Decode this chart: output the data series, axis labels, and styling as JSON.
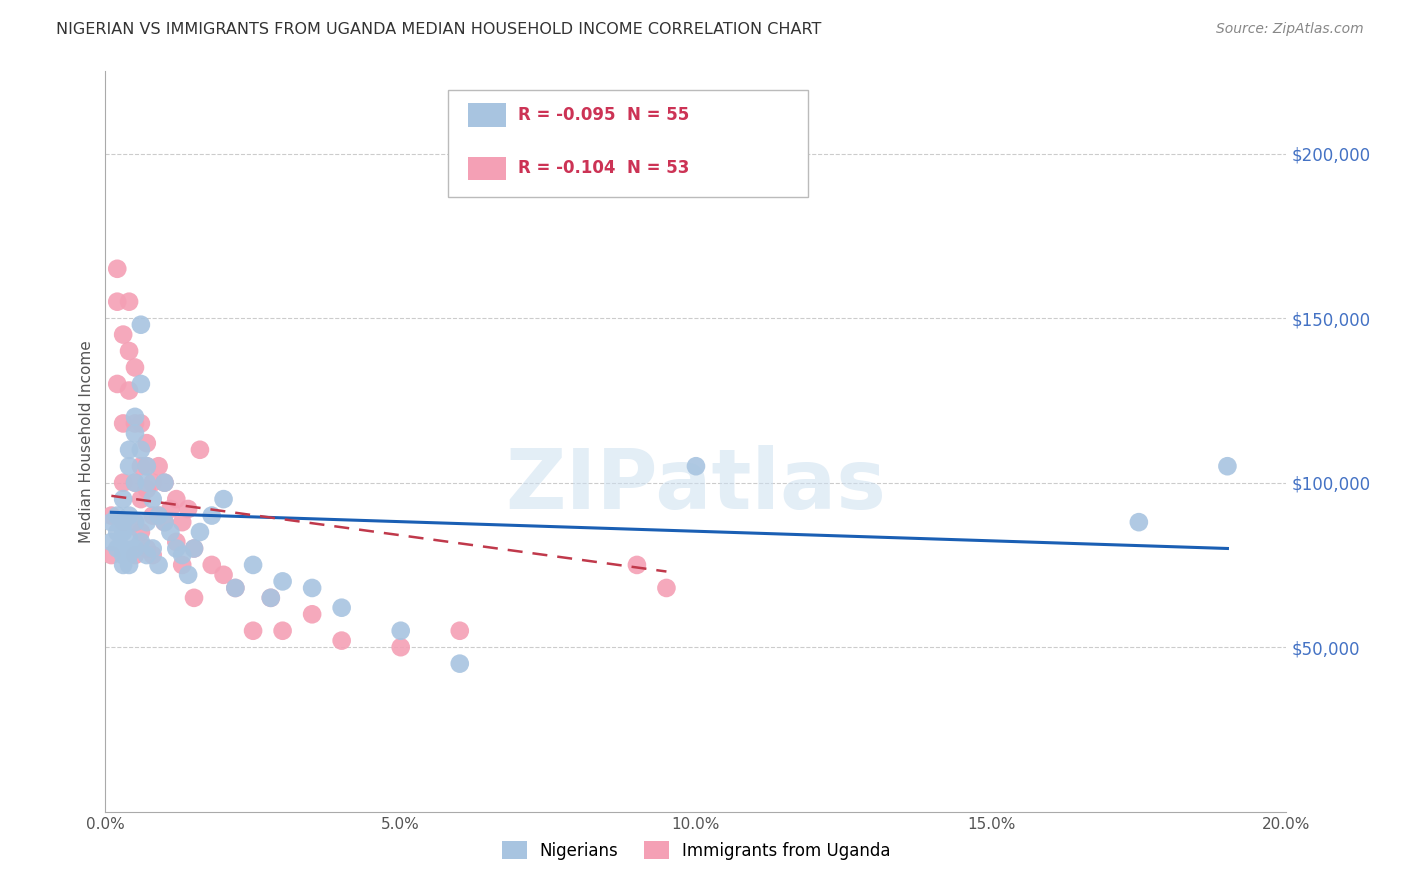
{
  "title": "NIGERIAN VS IMMIGRANTS FROM UGANDA MEDIAN HOUSEHOLD INCOME CORRELATION CHART",
  "source": "Source: ZipAtlas.com",
  "ylabel": "Median Household Income",
  "xlim": [
    0.0,
    0.2
  ],
  "ylim": [
    0,
    225000
  ],
  "yticks": [
    0,
    50000,
    100000,
    150000,
    200000
  ],
  "xticks": [
    0.0,
    0.05,
    0.1,
    0.15,
    0.2
  ],
  "xtick_labels": [
    "0.0%",
    "5.0%",
    "10.0%",
    "15.0%",
    "20.0%"
  ],
  "nigerian_color": "#a8c4e0",
  "uganda_color": "#f4a0b5",
  "nigerian_line_color": "#1a5fb4",
  "uganda_line_color": "#c0394b",
  "legend_R_nigerian": "R = -0.095",
  "legend_N_nigerian": "N = 55",
  "legend_R_uganda": "R = -0.104",
  "legend_N_uganda": "N = 53",
  "watermark": "ZIPatlas",
  "background_color": "#ffffff",
  "grid_color": "#cccccc",
  "nigerian_x": [
    0.001,
    0.001,
    0.002,
    0.002,
    0.002,
    0.003,
    0.003,
    0.003,
    0.003,
    0.003,
    0.003,
    0.004,
    0.004,
    0.004,
    0.004,
    0.004,
    0.004,
    0.005,
    0.005,
    0.005,
    0.005,
    0.005,
    0.006,
    0.006,
    0.006,
    0.006,
    0.007,
    0.007,
    0.007,
    0.007,
    0.008,
    0.008,
    0.009,
    0.009,
    0.01,
    0.01,
    0.011,
    0.012,
    0.013,
    0.014,
    0.015,
    0.016,
    0.018,
    0.02,
    0.022,
    0.025,
    0.028,
    0.03,
    0.035,
    0.04,
    0.05,
    0.06,
    0.1,
    0.175,
    0.19
  ],
  "nigerian_y": [
    88000,
    82000,
    90000,
    80000,
    85000,
    95000,
    80000,
    75000,
    85000,
    78000,
    88000,
    105000,
    110000,
    83000,
    90000,
    78000,
    75000,
    120000,
    115000,
    100000,
    88000,
    80000,
    148000,
    130000,
    110000,
    82000,
    105000,
    100000,
    88000,
    78000,
    95000,
    80000,
    90000,
    75000,
    100000,
    88000,
    85000,
    80000,
    78000,
    72000,
    80000,
    85000,
    90000,
    95000,
    68000,
    75000,
    65000,
    70000,
    68000,
    62000,
    55000,
    45000,
    105000,
    88000,
    105000
  ],
  "uganda_x": [
    0.001,
    0.001,
    0.002,
    0.002,
    0.002,
    0.003,
    0.003,
    0.003,
    0.003,
    0.004,
    0.004,
    0.004,
    0.005,
    0.005,
    0.005,
    0.005,
    0.005,
    0.006,
    0.006,
    0.006,
    0.006,
    0.007,
    0.007,
    0.007,
    0.007,
    0.008,
    0.008,
    0.008,
    0.009,
    0.009,
    0.01,
    0.01,
    0.011,
    0.012,
    0.012,
    0.013,
    0.013,
    0.014,
    0.015,
    0.015,
    0.016,
    0.018,
    0.02,
    0.022,
    0.025,
    0.028,
    0.03,
    0.035,
    0.04,
    0.05,
    0.06,
    0.09,
    0.095
  ],
  "uganda_y": [
    90000,
    78000,
    165000,
    155000,
    130000,
    145000,
    118000,
    100000,
    88000,
    155000,
    140000,
    128000,
    135000,
    118000,
    100000,
    88000,
    78000,
    118000,
    105000,
    95000,
    85000,
    112000,
    105000,
    98000,
    80000,
    100000,
    90000,
    78000,
    105000,
    90000,
    100000,
    88000,
    92000,
    95000,
    82000,
    88000,
    75000,
    92000,
    80000,
    65000,
    110000,
    75000,
    72000,
    68000,
    55000,
    65000,
    55000,
    60000,
    52000,
    50000,
    55000,
    75000,
    68000
  ],
  "nigerian_trend_x": [
    0.001,
    0.19
  ],
  "nigerian_trend_y": [
    91000,
    80000
  ],
  "uganda_trend_x": [
    0.001,
    0.095
  ],
  "uganda_trend_y": [
    96000,
    73000
  ]
}
